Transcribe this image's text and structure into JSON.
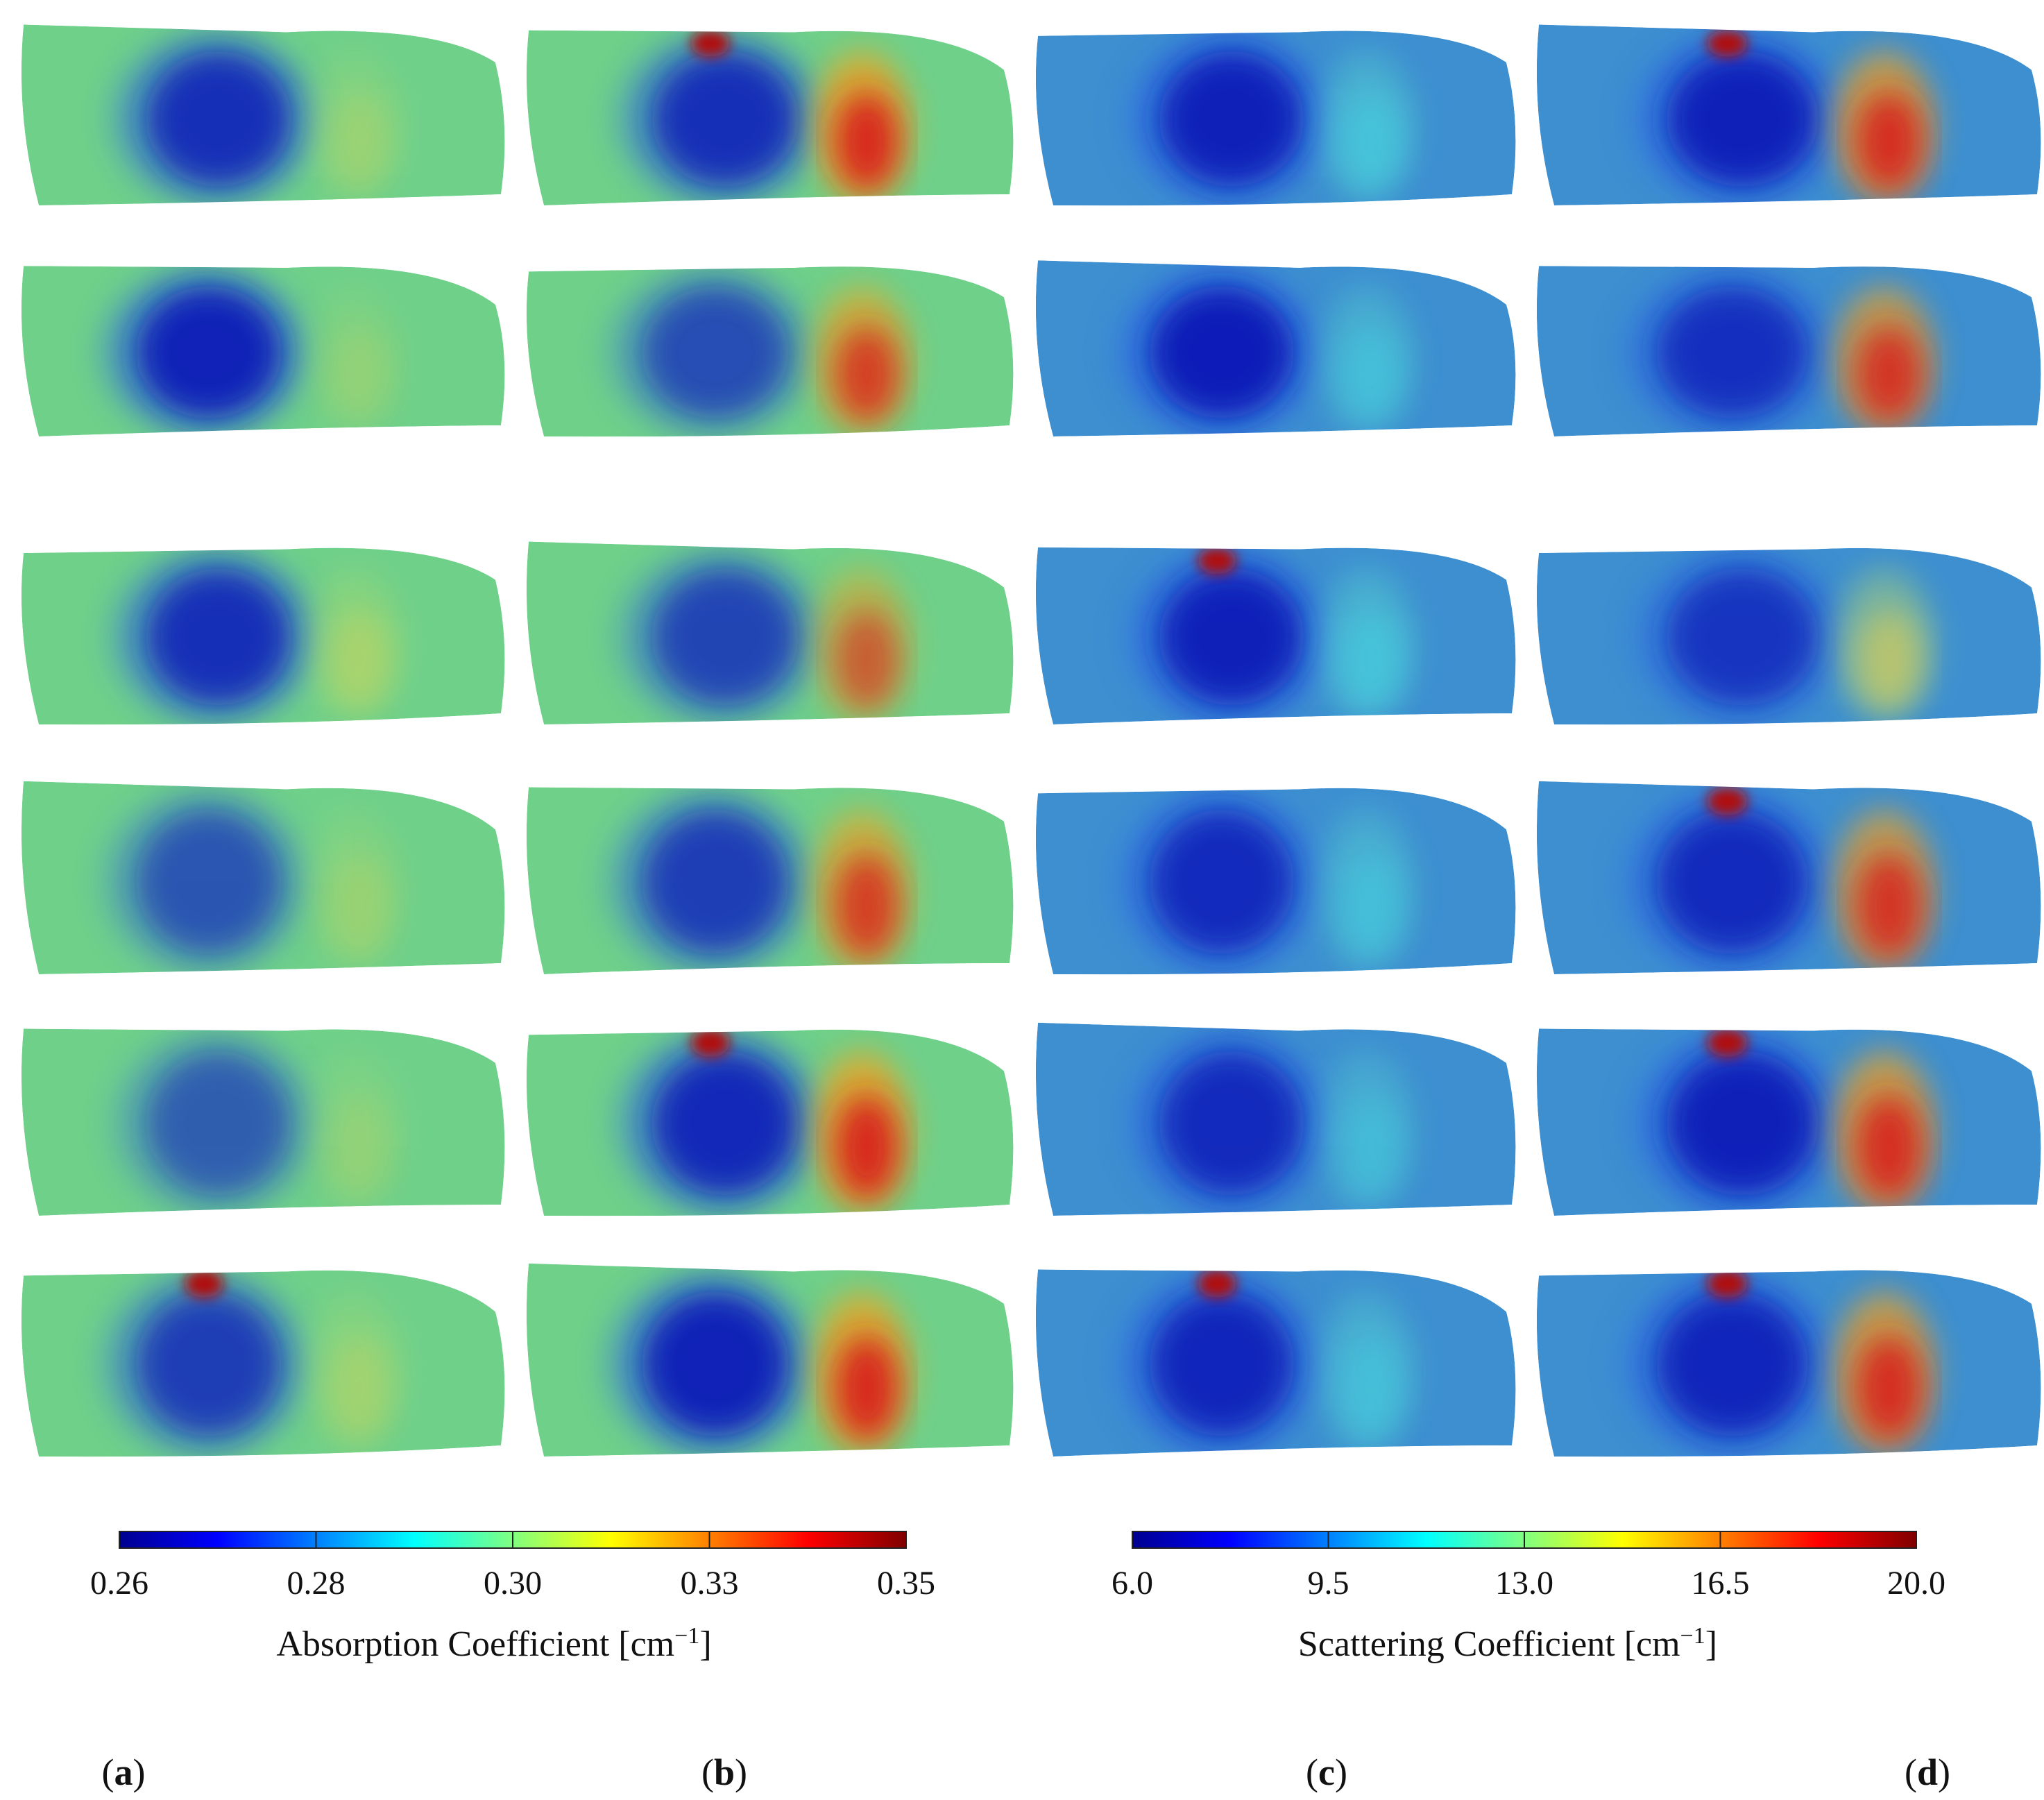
{
  "figure": {
    "panels": [
      {
        "letter": "a",
        "quantity": "absorption",
        "maps": [
          {
            "lesion": "blue",
            "lesion_intensity": 0.85,
            "secondary": "yellow",
            "secondary_intensity": 0.25,
            "hotspot": false
          },
          {
            "lesion": "blue",
            "lesion_intensity": 0.95,
            "secondary": "yellow",
            "secondary_intensity": 0.2,
            "hotspot": false
          },
          {
            "lesion": "blue",
            "lesion_intensity": 0.85,
            "secondary": "yellow",
            "secondary_intensity": 0.35,
            "hotspot": false
          },
          {
            "lesion": "blue",
            "lesion_intensity": 0.6,
            "secondary": "yellow",
            "secondary_intensity": 0.25,
            "hotspot": false
          },
          {
            "lesion": "blue",
            "lesion_intensity": 0.55,
            "secondary": "yellow",
            "secondary_intensity": 0.2,
            "hotspot": false
          },
          {
            "lesion": "blue",
            "lesion_intensity": 0.75,
            "secondary": "yellow",
            "secondary_intensity": 0.3,
            "hotspot": true
          }
        ]
      },
      {
        "letter": "b",
        "quantity": "absorption",
        "maps": [
          {
            "lesion": "blue",
            "lesion_intensity": 0.85,
            "secondary": "red",
            "secondary_intensity": 0.95,
            "hotspot": true
          },
          {
            "lesion": "blue",
            "lesion_intensity": 0.65,
            "secondary": "red",
            "secondary_intensity": 0.8,
            "hotspot": false
          },
          {
            "lesion": "blue",
            "lesion_intensity": 0.7,
            "secondary": "red",
            "secondary_intensity": 0.6,
            "hotspot": false
          },
          {
            "lesion": "blue",
            "lesion_intensity": 0.75,
            "secondary": "red",
            "secondary_intensity": 0.8,
            "hotspot": false
          },
          {
            "lesion": "blue",
            "lesion_intensity": 0.9,
            "secondary": "red",
            "secondary_intensity": 0.95,
            "hotspot": true
          },
          {
            "lesion": "blue",
            "lesion_intensity": 0.95,
            "secondary": "red",
            "secondary_intensity": 0.95,
            "hotspot": false
          }
        ]
      },
      {
        "letter": "c",
        "quantity": "scattering",
        "maps": [
          {
            "lesion": "blue",
            "lesion_intensity": 0.95,
            "secondary": "cyan",
            "secondary_intensity": 0.45,
            "hotspot": false
          },
          {
            "lesion": "blue",
            "lesion_intensity": 1.0,
            "secondary": "cyan",
            "secondary_intensity": 0.4,
            "hotspot": false
          },
          {
            "lesion": "blue",
            "lesion_intensity": 0.95,
            "secondary": "cyan",
            "secondary_intensity": 0.45,
            "hotspot": true
          },
          {
            "lesion": "blue",
            "lesion_intensity": 0.85,
            "secondary": "cyan",
            "secondary_intensity": 0.4,
            "hotspot": false
          },
          {
            "lesion": "blue",
            "lesion_intensity": 0.85,
            "secondary": "cyan",
            "secondary_intensity": 0.35,
            "hotspot": false
          },
          {
            "lesion": "blue",
            "lesion_intensity": 0.9,
            "secondary": "cyan",
            "secondary_intensity": 0.4,
            "hotspot": true
          }
        ]
      },
      {
        "letter": "d",
        "quantity": "scattering",
        "maps": [
          {
            "lesion": "blue",
            "lesion_intensity": 0.95,
            "secondary": "red",
            "secondary_intensity": 0.9,
            "hotspot": true
          },
          {
            "lesion": "blue",
            "lesion_intensity": 0.8,
            "secondary": "red",
            "secondary_intensity": 0.85,
            "hotspot": false
          },
          {
            "lesion": "blue",
            "lesion_intensity": 0.75,
            "secondary": "yellow",
            "secondary_intensity": 0.55,
            "hotspot": false
          },
          {
            "lesion": "blue",
            "lesion_intensity": 0.85,
            "secondary": "red",
            "secondary_intensity": 0.85,
            "hotspot": true
          },
          {
            "lesion": "blue",
            "lesion_intensity": 0.95,
            "secondary": "red",
            "secondary_intensity": 0.9,
            "hotspot": true
          },
          {
            "lesion": "blue",
            "lesion_intensity": 0.9,
            "secondary": "red",
            "secondary_intensity": 0.9,
            "hotspot": true
          }
        ]
      }
    ],
    "colorbars": [
      {
        "id": "absorption",
        "ticks": [
          "0.26",
          "0.28",
          "0.30",
          "0.33",
          "0.35"
        ],
        "label_prefix": "Absorption Coefficient [cm",
        "label_exponent": "−1",
        "label_suffix": "]"
      },
      {
        "id": "scattering",
        "ticks": [
          "6.0",
          "9.5",
          "13.0",
          "16.5",
          "20.0"
        ],
        "label_prefix": "Scattering Coefficient [cm",
        "label_exponent": "−1",
        "label_suffix": "]"
      }
    ],
    "colormap": [
      "#00008f",
      "#0000ff",
      "#0080ff",
      "#00ffff",
      "#80ff80",
      "#ffff00",
      "#ff8000",
      "#ff0000",
      "#800000"
    ],
    "background_colors": {
      "absorption": "#6fd08a",
      "scattering": "#3d8fd0"
    }
  }
}
